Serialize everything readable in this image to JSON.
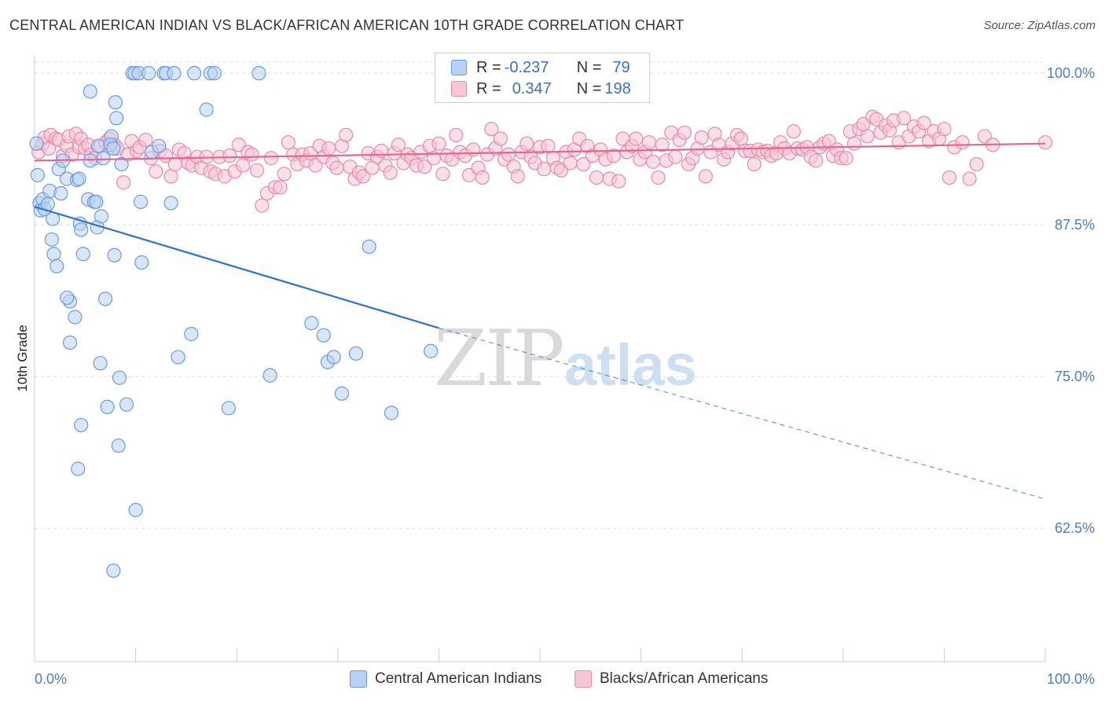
{
  "title": "CENTRAL AMERICAN INDIAN VS BLACK/AFRICAN AMERICAN 10TH GRADE CORRELATION CHART",
  "source": "Source: ZipAtlas.com",
  "watermark": {
    "part1": "ZIP",
    "part2": "atlas"
  },
  "colors": {
    "blue": "#6b9be0",
    "blue_fill": "#b9d1f3",
    "blue_line": "#2f6fd0",
    "pink": "#e98aab",
    "pink_fill": "#f6c5d6",
    "pink_line": "#e76592",
    "tick": "#4a7cc9",
    "grid": "#dddddd"
  },
  "legend": {
    "rows": [
      {
        "r_label": "R = ",
        "r_value": "-0.237",
        "n_label": "N = ",
        "n_value": "79"
      },
      {
        "r_label": "R = ",
        "r_value": "0.347",
        "n_label": "N = ",
        "n_value": "198"
      }
    ]
  },
  "bottom_legend": [
    "Central American Indians",
    "Blacks/African Americans"
  ],
  "chart_data": {
    "type": "scatter",
    "title": "CENTRAL AMERICAN INDIAN VS BLACK/AFRICAN AMERICAN 10TH GRADE CORRELATION CHART",
    "xlabel": "",
    "ylabel": "10th Grade",
    "xlim": [
      0,
      100
    ],
    "ylim": [
      51.5,
      101.5
    ],
    "x_ticks": [
      "0.0%",
      "100.0%"
    ],
    "y_ticks": [
      {
        "value": 100.0,
        "label": "100.0%"
      },
      {
        "value": 87.5,
        "label": "87.5%"
      },
      {
        "value": 75.0,
        "label": "75.0%"
      },
      {
        "value": 62.5,
        "label": "62.5%"
      }
    ],
    "grid": "horizontal dashed",
    "legend_position": "top-center",
    "series": [
      {
        "name": "Central American Indians",
        "r": -0.237,
        "n": 79,
        "trend": {
          "x0": 0,
          "y0": 89.0,
          "x1": 40,
          "y1": 79.0,
          "dashed_to_x": 100,
          "dashed_to_y": 64.9
        },
        "points": [
          [
            0.2,
            94.2
          ],
          [
            0.3,
            91.6
          ],
          [
            0.5,
            89.3
          ],
          [
            0.6,
            88.7
          ],
          [
            0.8,
            89.6
          ],
          [
            1.0,
            88.8
          ],
          [
            1.3,
            89.2
          ],
          [
            1.5,
            90.3
          ],
          [
            1.8,
            88.0
          ],
          [
            1.7,
            86.3
          ],
          [
            1.9,
            85.1
          ],
          [
            2.2,
            84.1
          ],
          [
            2.4,
            92.1
          ],
          [
            2.6,
            90.1
          ],
          [
            2.8,
            92.8
          ],
          [
            3.2,
            91.3
          ],
          [
            3.5,
            81.2
          ],
          [
            3.2,
            81.5
          ],
          [
            3.5,
            77.8
          ],
          [
            4.0,
            79.9
          ],
          [
            4.2,
            91.2
          ],
          [
            4.4,
            91.3
          ],
          [
            4.5,
            87.6
          ],
          [
            4.6,
            87.1
          ],
          [
            4.3,
            67.4
          ],
          [
            4.6,
            71.0
          ],
          [
            4.8,
            85.1
          ],
          [
            5.3,
            89.6
          ],
          [
            5.5,
            98.5
          ],
          [
            5.5,
            92.8
          ],
          [
            5.9,
            89.4
          ],
          [
            6.1,
            89.4
          ],
          [
            6.2,
            87.3
          ],
          [
            6.3,
            94.0
          ],
          [
            6.5,
            76.1
          ],
          [
            6.6,
            88.2
          ],
          [
            6.8,
            93.0
          ],
          [
            7.0,
            81.4
          ],
          [
            7.2,
            72.5
          ],
          [
            7.6,
            94.8
          ],
          [
            7.5,
            94.1
          ],
          [
            7.8,
            59.0
          ],
          [
            7.8,
            93.8
          ],
          [
            7.9,
            85.0
          ],
          [
            8.0,
            97.6
          ],
          [
            8.1,
            96.3
          ],
          [
            8.3,
            69.3
          ],
          [
            8.4,
            74.9
          ],
          [
            8.6,
            92.5
          ],
          [
            9.1,
            72.7
          ],
          [
            9.7,
            100.0
          ],
          [
            9.9,
            100.0
          ],
          [
            10.0,
            64.0
          ],
          [
            10.3,
            100.0
          ],
          [
            10.5,
            89.4
          ],
          [
            10.6,
            84.4
          ],
          [
            11.3,
            100.0
          ],
          [
            11.6,
            93.5
          ],
          [
            12.3,
            94.0
          ],
          [
            12.8,
            100.0
          ],
          [
            13.0,
            100.0
          ],
          [
            13.5,
            89.3
          ],
          [
            13.8,
            100.0
          ],
          [
            14.2,
            76.6
          ],
          [
            15.8,
            100.0
          ],
          [
            15.5,
            78.5
          ],
          [
            17.0,
            97.0
          ],
          [
            17.4,
            100.0
          ],
          [
            17.8,
            100.0
          ],
          [
            19.2,
            72.4
          ],
          [
            22.2,
            100.0
          ],
          [
            23.3,
            75.1
          ],
          [
            27.4,
            79.4
          ],
          [
            28.6,
            78.4
          ],
          [
            29.0,
            76.2
          ],
          [
            29.6,
            76.6
          ],
          [
            30.4,
            73.6
          ],
          [
            31.8,
            76.9
          ],
          [
            33.1,
            85.7
          ],
          [
            35.3,
            72.0
          ],
          [
            39.2,
            77.1
          ]
        ]
      },
      {
        "name": "Blacks/African Americans",
        "r": 0.347,
        "n": 198,
        "trend": {
          "x0": 0,
          "y0": 92.8,
          "x1": 100,
          "y1": 94.2
        },
        "points": [
          [
            0.4,
            93.5
          ],
          [
            0.8,
            94.2
          ],
          [
            1.0,
            94.7
          ],
          [
            1.4,
            93.8
          ],
          [
            1.6,
            94.9
          ],
          [
            2.1,
            94.6
          ],
          [
            2.4,
            94.5
          ],
          [
            2.8,
            93.2
          ],
          [
            3.2,
            94.0
          ],
          [
            3.4,
            94.8
          ],
          [
            3.7,
            93.3
          ],
          [
            4.1,
            95.0
          ],
          [
            4.4,
            93.9
          ],
          [
            4.6,
            94.6
          ],
          [
            5.0,
            93.8
          ],
          [
            5.3,
            94.1
          ],
          [
            5.6,
            93.3
          ],
          [
            6.0,
            93.0
          ],
          [
            6.5,
            94.0
          ],
          [
            7.0,
            94.3
          ],
          [
            7.4,
            94.6
          ],
          [
            7.9,
            94.1
          ],
          [
            8.2,
            93.8
          ],
          [
            8.8,
            91.0
          ],
          [
            9.2,
            93.3
          ],
          [
            9.6,
            94.4
          ],
          [
            10.1,
            93.6
          ],
          [
            10.4,
            93.9
          ],
          [
            11.0,
            94.5
          ],
          [
            11.5,
            93.0
          ],
          [
            12.0,
            91.9
          ],
          [
            12.4,
            93.6
          ],
          [
            13.0,
            93.2
          ],
          [
            13.5,
            91.5
          ],
          [
            13.9,
            92.5
          ],
          [
            14.3,
            93.7
          ],
          [
            14.8,
            93.4
          ],
          [
            15.2,
            92.6
          ],
          [
            15.6,
            92.4
          ],
          [
            16.1,
            93.1
          ],
          [
            16.5,
            92.2
          ],
          [
            17.0,
            93.1
          ],
          [
            17.4,
            91.9
          ],
          [
            17.9,
            91.7
          ],
          [
            18.3,
            93.1
          ],
          [
            18.8,
            91.5
          ],
          [
            19.3,
            93.2
          ],
          [
            19.8,
            91.9
          ],
          [
            20.2,
            94.1
          ],
          [
            20.6,
            92.4
          ],
          [
            21.1,
            93.5
          ],
          [
            21.5,
            93.3
          ],
          [
            22.0,
            92.0
          ],
          [
            22.5,
            89.1
          ],
          [
            23.0,
            90.1
          ],
          [
            23.4,
            93.0
          ],
          [
            23.8,
            90.6
          ],
          [
            24.3,
            90.6
          ],
          [
            24.7,
            91.7
          ],
          [
            25.1,
            94.3
          ],
          [
            25.6,
            93.3
          ],
          [
            26.0,
            92.5
          ],
          [
            26.5,
            93.3
          ],
          [
            26.9,
            92.8
          ],
          [
            27.3,
            93.4
          ],
          [
            27.8,
            92.4
          ],
          [
            28.2,
            94.0
          ],
          [
            28.6,
            93.1
          ],
          [
            29.1,
            93.8
          ],
          [
            29.5,
            92.6
          ],
          [
            29.9,
            92.2
          ],
          [
            30.4,
            94.0
          ],
          [
            30.8,
            94.9
          ],
          [
            31.2,
            92.3
          ],
          [
            31.7,
            91.3
          ],
          [
            32.1,
            91.8
          ],
          [
            32.5,
            91.5
          ],
          [
            33.0,
            93.4
          ],
          [
            33.4,
            92.2
          ],
          [
            33.9,
            93.1
          ],
          [
            34.3,
            93.6
          ],
          [
            34.7,
            92.4
          ],
          [
            35.2,
            91.8
          ],
          [
            35.6,
            93.4
          ],
          [
            36.0,
            94.1
          ],
          [
            36.5,
            92.6
          ],
          [
            36.9,
            93.3
          ],
          [
            37.3,
            93.0
          ],
          [
            37.8,
            92.4
          ],
          [
            38.2,
            93.5
          ],
          [
            38.6,
            92.3
          ],
          [
            39.1,
            94.0
          ],
          [
            39.5,
            93.0
          ],
          [
            40.0,
            94.2
          ],
          [
            40.4,
            91.7
          ],
          [
            40.8,
            93.2
          ],
          [
            41.3,
            92.9
          ],
          [
            41.7,
            94.9
          ],
          [
            42.1,
            93.5
          ],
          [
            42.6,
            93.2
          ],
          [
            43.0,
            91.6
          ],
          [
            43.4,
            93.7
          ],
          [
            43.9,
            92.2
          ],
          [
            44.3,
            91.4
          ],
          [
            44.8,
            93.3
          ],
          [
            45.2,
            95.4
          ],
          [
            45.6,
            93.8
          ],
          [
            46.1,
            94.6
          ],
          [
            46.5,
            92.9
          ],
          [
            46.9,
            93.3
          ],
          [
            47.4,
            92.3
          ],
          [
            47.8,
            91.5
          ],
          [
            48.2,
            93.5
          ],
          [
            48.7,
            94.2
          ],
          [
            49.1,
            93.1
          ],
          [
            49.5,
            92.6
          ],
          [
            50.0,
            93.9
          ],
          [
            50.4,
            92.1
          ],
          [
            50.8,
            94.0
          ],
          [
            51.3,
            93.0
          ],
          [
            51.7,
            92.2
          ],
          [
            52.1,
            92.0
          ],
          [
            52.6,
            93.5
          ],
          [
            53.0,
            92.6
          ],
          [
            53.4,
            93.7
          ],
          [
            53.9,
            94.6
          ],
          [
            54.3,
            92.5
          ],
          [
            54.7,
            94.0
          ],
          [
            55.2,
            93.2
          ],
          [
            55.6,
            91.4
          ],
          [
            56.0,
            93.7
          ],
          [
            56.5,
            92.9
          ],
          [
            56.9,
            91.3
          ],
          [
            57.3,
            93.2
          ],
          [
            57.8,
            91.1
          ],
          [
            58.2,
            94.6
          ],
          [
            58.6,
            93.5
          ],
          [
            59.1,
            94.0
          ],
          [
            59.5,
            94.6
          ],
          [
            59.9,
            92.9
          ],
          [
            60.4,
            93.5
          ],
          [
            60.8,
            94.3
          ],
          [
            61.2,
            92.7
          ],
          [
            61.7,
            91.4
          ],
          [
            62.1,
            94.1
          ],
          [
            62.5,
            92.8
          ],
          [
            63.0,
            95.1
          ],
          [
            63.4,
            93.1
          ],
          [
            63.8,
            94.5
          ],
          [
            64.3,
            95.1
          ],
          [
            64.7,
            92.5
          ],
          [
            65.1,
            93.0
          ],
          [
            65.6,
            93.8
          ],
          [
            66.0,
            94.7
          ],
          [
            66.4,
            91.5
          ],
          [
            66.9,
            93.5
          ],
          [
            67.3,
            95.0
          ],
          [
            67.7,
            94.1
          ],
          [
            68.2,
            92.9
          ],
          [
            68.6,
            93.5
          ],
          [
            69.0,
            94.2
          ],
          [
            69.5,
            94.9
          ],
          [
            69.9,
            94.6
          ],
          [
            70.3,
            93.6
          ],
          [
            70.8,
            93.6
          ],
          [
            71.2,
            92.5
          ],
          [
            71.6,
            93.7
          ],
          [
            72.1,
            93.5
          ],
          [
            72.5,
            93.6
          ],
          [
            72.9,
            93.2
          ],
          [
            73.4,
            93.4
          ],
          [
            73.8,
            94.3
          ],
          [
            74.2,
            93.8
          ],
          [
            74.7,
            93.4
          ],
          [
            75.1,
            95.2
          ],
          [
            75.5,
            93.8
          ],
          [
            76.0,
            93.7
          ],
          [
            76.4,
            93.9
          ],
          [
            76.8,
            93.1
          ],
          [
            77.3,
            92.8
          ],
          [
            77.7,
            93.9
          ],
          [
            78.1,
            94.2
          ],
          [
            78.6,
            94.4
          ],
          [
            79.0,
            93.2
          ],
          [
            79.4,
            93.7
          ],
          [
            79.8,
            93.0
          ],
          [
            80.3,
            93.0
          ],
          [
            80.7,
            95.2
          ],
          [
            81.1,
            94.2
          ],
          [
            81.6,
            95.4
          ],
          [
            82.0,
            95.8
          ],
          [
            82.4,
            94.8
          ],
          [
            82.9,
            96.4
          ],
          [
            83.3,
            96.2
          ],
          [
            83.7,
            95.1
          ],
          [
            84.2,
            95.7
          ],
          [
            84.6,
            95.3
          ],
          [
            85.0,
            96.1
          ],
          [
            85.5,
            94.3
          ],
          [
            86.0,
            96.3
          ],
          [
            86.5,
            94.8
          ],
          [
            87.0,
            95.6
          ],
          [
            87.5,
            95.2
          ],
          [
            88.0,
            95.9
          ],
          [
            88.5,
            94.4
          ],
          [
            89.0,
            95.2
          ],
          [
            89.5,
            94.6
          ],
          [
            90.0,
            95.4
          ],
          [
            90.5,
            91.4
          ],
          [
            91.0,
            93.9
          ],
          [
            91.8,
            94.3
          ],
          [
            92.5,
            91.3
          ],
          [
            93.2,
            92.5
          ],
          [
            94.0,
            94.8
          ],
          [
            94.8,
            94.1
          ],
          [
            100.0,
            94.3
          ]
        ]
      }
    ]
  }
}
